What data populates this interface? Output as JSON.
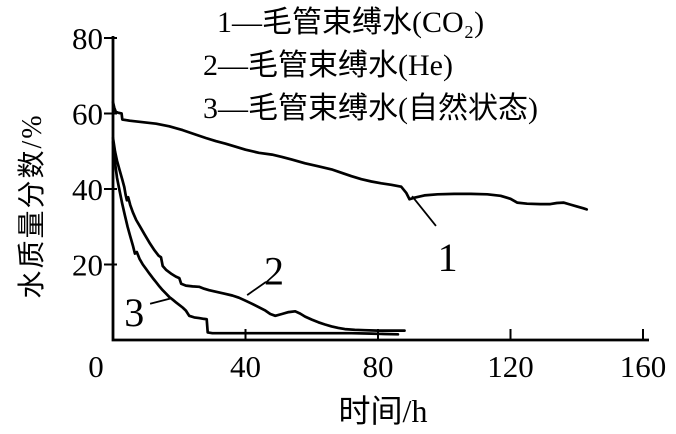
{
  "figure": {
    "background": "#ffffff",
    "ink": "#000000"
  },
  "chart_data": {
    "type": "line",
    "title": "",
    "xlabel": "时间/h",
    "ylabel": "水质量分数/%",
    "xlim": [
      0,
      160
    ],
    "ylim": [
      0,
      80
    ],
    "xticks": [
      0,
      40,
      80,
      120,
      160
    ],
    "yticks": [
      20,
      40,
      60,
      80
    ],
    "grid": false,
    "legend_position": "top",
    "legend": [
      "1—毛管束缚水(CO₂)",
      "2—毛管束缚水(He)",
      "3—毛管束缚水(自然状态)"
    ],
    "series": [
      {
        "name": "1",
        "description": "毛管束缚水(CO₂)",
        "points": [
          [
            0,
            63
          ],
          [
            0.4,
            61.5
          ],
          [
            0.8,
            60.5
          ],
          [
            1.5,
            60.2
          ],
          [
            2.6,
            60
          ],
          [
            2.8,
            58.4
          ],
          [
            5,
            58.1
          ],
          [
            9,
            57.7
          ],
          [
            13,
            57.3
          ],
          [
            17,
            56.6
          ],
          [
            21,
            55.6
          ],
          [
            25,
            54.4
          ],
          [
            28,
            53.5
          ],
          [
            31,
            52.7
          ],
          [
            34,
            52
          ],
          [
            37,
            51.2
          ],
          [
            40,
            50.4
          ],
          [
            44,
            49.6
          ],
          [
            48,
            49.1
          ],
          [
            51,
            48.5
          ],
          [
            54,
            47.8
          ],
          [
            58,
            46.8
          ],
          [
            62,
            46
          ],
          [
            66,
            45.2
          ],
          [
            69,
            44.3
          ],
          [
            72,
            43.4
          ],
          [
            75,
            42.6
          ],
          [
            78,
            42
          ],
          [
            81,
            41.5
          ],
          [
            84,
            41.1
          ],
          [
            87,
            40.6
          ],
          [
            88.5,
            39
          ],
          [
            89.5,
            37.3
          ],
          [
            91,
            37.7
          ],
          [
            94,
            38.3
          ],
          [
            98,
            38.6
          ],
          [
            103,
            38.7
          ],
          [
            108,
            38.7
          ],
          [
            113,
            38.6
          ],
          [
            117,
            38.2
          ],
          [
            120,
            37.4
          ],
          [
            122,
            36.4
          ],
          [
            125,
            36.1
          ],
          [
            129,
            36
          ],
          [
            132,
            36
          ],
          [
            134,
            36.3
          ],
          [
            136,
            36.4
          ],
          [
            138,
            35.9
          ],
          [
            140,
            35.4
          ],
          [
            142,
            34.9
          ],
          [
            143,
            34.6
          ]
        ]
      },
      {
        "name": "2",
        "description": "毛管束缚水(He)",
        "points": [
          [
            0,
            53.5
          ],
          [
            0.6,
            50
          ],
          [
            1.2,
            47.5
          ],
          [
            2,
            45
          ],
          [
            2.8,
            42.5
          ],
          [
            3.4,
            40.5
          ],
          [
            3.8,
            38.5
          ],
          [
            4.2,
            37
          ],
          [
            4.6,
            37.8
          ],
          [
            5.2,
            35.8
          ],
          [
            6,
            33.8
          ],
          [
            7,
            31.8
          ],
          [
            8.2,
            30
          ],
          [
            9.5,
            28
          ],
          [
            11,
            25.8
          ],
          [
            12.5,
            23.8
          ],
          [
            13.8,
            22.3
          ],
          [
            14.5,
            21.9
          ],
          [
            15,
            19.6
          ],
          [
            16,
            18.6
          ],
          [
            17.5,
            17.6
          ],
          [
            19,
            16.8
          ],
          [
            20,
            16.4
          ],
          [
            20.6,
            14.9
          ],
          [
            22,
            14.4
          ],
          [
            24,
            14.2
          ],
          [
            26,
            14.1
          ],
          [
            27.5,
            13.6
          ],
          [
            29,
            13.2
          ],
          [
            31,
            12.8
          ],
          [
            33.5,
            12.3
          ],
          [
            36,
            11.8
          ],
          [
            38,
            11.2
          ],
          [
            40,
            10.4
          ],
          [
            42,
            9.6
          ],
          [
            44,
            8.7
          ],
          [
            46,
            7.8
          ],
          [
            47.5,
            6.9
          ],
          [
            49,
            6.4
          ],
          [
            51,
            6.9
          ],
          [
            53,
            7.4
          ],
          [
            55,
            7.6
          ],
          [
            56.5,
            7
          ],
          [
            58,
            6.2
          ],
          [
            60,
            5.4
          ],
          [
            62,
            4.7
          ],
          [
            64,
            4.1
          ],
          [
            66,
            3.6
          ],
          [
            68,
            3.2
          ],
          [
            70,
            2.9
          ],
          [
            73,
            2.7
          ],
          [
            76,
            2.6
          ],
          [
            80,
            2.5
          ],
          [
            84,
            2.5
          ],
          [
            88,
            2.5
          ]
        ]
      },
      {
        "name": "3",
        "description": "毛管束缚水(自然状态)",
        "points": [
          [
            0,
            52.5
          ],
          [
            0.6,
            47
          ],
          [
            1.2,
            43
          ],
          [
            2,
            39.5
          ],
          [
            2.8,
            36
          ],
          [
            3.6,
            33
          ],
          [
            4.4,
            30
          ],
          [
            5.2,
            27.5
          ],
          [
            6,
            25
          ],
          [
            6.6,
            22.9
          ],
          [
            7.2,
            23.3
          ],
          [
            8,
            21.5
          ],
          [
            9,
            20
          ],
          [
            10,
            18.8
          ],
          [
            11,
            17.6
          ],
          [
            12,
            16.4
          ],
          [
            13,
            15.3
          ],
          [
            14,
            14.2
          ],
          [
            15,
            13.2
          ],
          [
            16,
            12.3
          ],
          [
            17,
            11.4
          ],
          [
            18,
            10.7
          ],
          [
            19,
            10
          ],
          [
            20,
            9.3
          ],
          [
            21,
            8.6
          ],
          [
            22,
            7.8
          ],
          [
            23,
            6.4
          ],
          [
            24.5,
            6
          ],
          [
            26,
            5.8
          ],
          [
            27.5,
            5.6
          ],
          [
            28.3,
            5.5
          ],
          [
            28.6,
            2
          ],
          [
            30,
            1.8
          ],
          [
            34,
            1.8
          ],
          [
            40,
            1.8
          ],
          [
            48,
            1.8
          ],
          [
            56,
            1.8
          ],
          [
            64,
            1.8
          ],
          [
            72,
            1.8
          ],
          [
            78,
            1.7
          ],
          [
            82,
            1.6
          ],
          [
            86,
            1.5
          ]
        ]
      }
    ],
    "annotations": [
      {
        "text": "1",
        "x": 101,
        "y": 22.5,
        "leader": [
          [
            90.3,
            38.1
          ],
          [
            97.5,
            30.2
          ]
        ]
      },
      {
        "text": "2",
        "x": 48.6,
        "y": 18.9,
        "leader": [
          [
            46.2,
            15.4
          ],
          [
            40.5,
            11.9
          ]
        ]
      },
      {
        "text": "3",
        "x": 6.4,
        "y": 7.9,
        "leader": [
          [
            11.2,
            9.6
          ],
          [
            17.8,
            11.1
          ]
        ]
      }
    ],
    "origin_label": "0"
  }
}
